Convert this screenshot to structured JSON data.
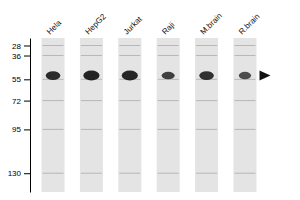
{
  "chart_data": {
    "type": "blot",
    "categories": [
      "Hela",
      "HepG2",
      "Jurkat",
      "Raji",
      "M.brain",
      "R.brain"
    ],
    "values": [
      52,
      52,
      52,
      52,
      52,
      52
    ],
    "band_heights": [
      7,
      8,
      8,
      6,
      7,
      6
    ],
    "band_widths": [
      0.38,
      0.42,
      0.42,
      0.34,
      0.38,
      0.32
    ],
    "intensity": [
      0.88,
      0.92,
      0.9,
      0.78,
      0.85,
      0.72
    ],
    "color": "#111111",
    "ylim": [
      22,
      145
    ],
    "yticks": [
      130,
      95,
      72,
      55,
      36,
      28
    ],
    "grid": true
  }
}
